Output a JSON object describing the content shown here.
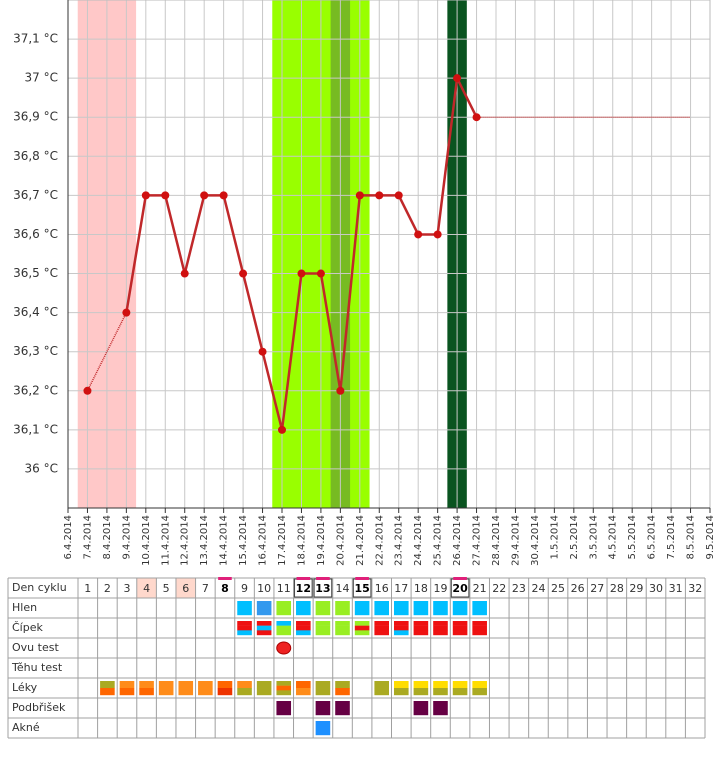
{
  "chart_data": {
    "type": "line",
    "x": [
      "6.4.2014",
      "7.4.2014",
      "8.4.2014",
      "9.4.2014",
      "10.4.2014",
      "11.4.2014",
      "12.4.2014",
      "13.4.2014",
      "14.4.2014",
      "15.4.2014",
      "16.4.2014",
      "17.4.2014",
      "18.4.2014",
      "19.4.2014",
      "20.4.2014",
      "21.4.2014",
      "22.4.2014",
      "23.4.2014",
      "24.4.2014",
      "25.4.2014",
      "26.4.2014",
      "27.4.2014",
      "28.4.2014",
      "29.4.2014",
      "30.4.2014",
      "1.5.2014",
      "2.5.2014",
      "3.5.2014",
      "4.5.2014",
      "5.5.2014",
      "6.5.2014",
      "7.5.2014",
      "8.5.2014",
      "9.5.2014"
    ],
    "values": [
      null,
      36.2,
      null,
      36.4,
      36.7,
      36.7,
      36.5,
      36.7,
      36.7,
      36.5,
      36.3,
      36.1,
      36.5,
      36.5,
      36.2,
      36.7,
      36.7,
      36.7,
      36.6,
      36.6,
      37.0,
      36.9,
      null,
      null,
      null,
      null,
      null,
      null,
      null,
      null,
      null,
      null,
      null,
      null
    ],
    "color": "#c0282a",
    "point_color": "#d01010",
    "ylim": [
      35.9,
      37.2
    ],
    "yticks": [
      {
        "value": 36.0,
        "label": "36 °C"
      },
      {
        "value": 36.1,
        "label": "36,1 °C"
      },
      {
        "value": 36.2,
        "label": "36,2 °C"
      },
      {
        "value": 36.3,
        "label": "36,3 °C"
      },
      {
        "value": 36.4,
        "label": "36,4 °C"
      },
      {
        "value": 36.5,
        "label": "36,5 °C"
      },
      {
        "value": 36.6,
        "label": "36,6 °C"
      },
      {
        "value": 36.7,
        "label": "36,7 °C"
      },
      {
        "value": 36.8,
        "label": "36,8 °C"
      },
      {
        "value": 36.9,
        "label": "36,9 °C"
      },
      {
        "value": 37.0,
        "label": "37 °C"
      },
      {
        "value": 37.1,
        "label": "37,1 °C"
      }
    ],
    "grid": true,
    "reference_line": {
      "value": 36.9,
      "color": "#c0282a"
    },
    "highlights": [
      {
        "start": "7.4.2014",
        "end": "9.4.2014",
        "color": "#ffc8c8"
      },
      {
        "start": "17.4.2014",
        "end": "21.4.2014",
        "color": "#99ff00"
      },
      {
        "start": "20.4.2014",
        "end": "20.4.2014",
        "color": "#77bb22"
      },
      {
        "start": "26.4.2014",
        "end": "26.4.2014",
        "color": "#0a5420"
      }
    ]
  },
  "cycle_table": {
    "header_label": "Den cyklu",
    "days": [
      1,
      2,
      3,
      4,
      5,
      6,
      7,
      8,
      9,
      10,
      11,
      12,
      13,
      14,
      15,
      16,
      17,
      18,
      19,
      20,
      21,
      22,
      23,
      24,
      25,
      26,
      27,
      28,
      29,
      30,
      31,
      32
    ],
    "pink_days": [
      4,
      6
    ],
    "marked_days": [
      8,
      12,
      13,
      15,
      20
    ],
    "boxed_days": [
      12,
      13,
      15,
      20
    ],
    "rows": [
      {
        "label": "Hlen",
        "cells": [
          {
            "day": 9,
            "colors": [
              "#00bfff"
            ]
          },
          {
            "day": 10,
            "colors": [
              "#3399ee"
            ]
          },
          {
            "day": 11,
            "colors": [
              "#99ee22"
            ]
          },
          {
            "day": 12,
            "colors": [
              "#00bfff"
            ]
          },
          {
            "day": 13,
            "colors": [
              "#99ee22"
            ]
          },
          {
            "day": 14,
            "colors": [
              "#99ee22"
            ]
          },
          {
            "day": 15,
            "colors": [
              "#00bfff"
            ]
          },
          {
            "day": 16,
            "colors": [
              "#00bfff"
            ]
          },
          {
            "day": 17,
            "colors": [
              "#00bfff"
            ]
          },
          {
            "day": 18,
            "colors": [
              "#00bfff"
            ]
          },
          {
            "day": 19,
            "colors": [
              "#00bfff"
            ]
          },
          {
            "day": 20,
            "colors": [
              "#00bfff"
            ]
          },
          {
            "day": 21,
            "colors": [
              "#00bfff"
            ]
          }
        ]
      },
      {
        "label": "Čípek",
        "cells": [
          {
            "day": 9,
            "colors": [
              "#ee1111",
              "#ee1111",
              "#00bfff"
            ]
          },
          {
            "day": 10,
            "colors": [
              "#ee1111",
              "#00bfff",
              "#ee1111"
            ]
          },
          {
            "day": 11,
            "colors": [
              "#00bfff",
              "#99ee22",
              "#99ee22"
            ]
          },
          {
            "day": 12,
            "colors": [
              "#ee1111",
              "#ee1111",
              "#00bfff"
            ]
          },
          {
            "day": 13,
            "colors": [
              "#99ee22",
              "#99ee22",
              "#99ee22"
            ]
          },
          {
            "day": 14,
            "colors": [
              "#99ee22",
              "#99ee22",
              "#99ee22"
            ]
          },
          {
            "day": 15,
            "colors": [
              "#99ee22",
              "#ee1111",
              "#99ee22"
            ]
          },
          {
            "day": 16,
            "colors": [
              "#ee1111",
              "#ee1111",
              "#ee1111"
            ]
          },
          {
            "day": 17,
            "colors": [
              "#ee1111",
              "#ee1111",
              "#00bfff"
            ]
          },
          {
            "day": 18,
            "colors": [
              "#ee1111",
              "#ee1111",
              "#ee1111"
            ]
          },
          {
            "day": 19,
            "colors": [
              "#ee1111",
              "#ee1111",
              "#ee1111"
            ]
          },
          {
            "day": 20,
            "colors": [
              "#ee1111",
              "#ee1111",
              "#ee1111"
            ]
          },
          {
            "day": 21,
            "colors": [
              "#ee1111",
              "#ee1111",
              "#ee1111"
            ]
          }
        ]
      },
      {
        "label": "Ovu test",
        "cells": [
          {
            "day": 11,
            "colors": [
              "#ee2222"
            ],
            "shape": "blob"
          }
        ]
      },
      {
        "label": "Těhu test",
        "cells": []
      },
      {
        "label": "Léky",
        "cells": [
          {
            "day": 2,
            "colors": [
              "#aaaa22",
              "#ff6600"
            ]
          },
          {
            "day": 3,
            "colors": [
              "#ff8c1a",
              "#ff6600"
            ]
          },
          {
            "day": 4,
            "colors": [
              "#ff8c1a",
              "#ff6600"
            ]
          },
          {
            "day": 5,
            "colors": [
              "#ff8c1a",
              "#ff8c1a"
            ]
          },
          {
            "day": 6,
            "colors": [
              "#ff8c1a",
              "#ff8c1a"
            ]
          },
          {
            "day": 7,
            "colors": [
              "#ff8c1a",
              "#ff8c1a"
            ]
          },
          {
            "day": 8,
            "colors": [
              "#ff6600",
              "#ee3300"
            ]
          },
          {
            "day": 9,
            "colors": [
              "#ff8c1a",
              "#aaaa22"
            ]
          },
          {
            "day": 10,
            "colors": [
              "#aaaa22",
              "#aaaa22"
            ]
          },
          {
            "day": 11,
            "colors": [
              "#aaaa22",
              "#ff6600",
              "#aaaa22"
            ]
          },
          {
            "day": 12,
            "colors": [
              "#ff6600",
              "#ff8c1a"
            ]
          },
          {
            "day": 13,
            "colors": [
              "#aaaa22",
              "#aaaa22"
            ]
          },
          {
            "day": 14,
            "colors": [
              "#aaaa22",
              "#ff6600"
            ]
          },
          {
            "day": 16,
            "colors": [
              "#aaaa22",
              "#aaaa22"
            ]
          },
          {
            "day": 17,
            "colors": [
              "#ffdd00",
              "#aaaa22"
            ]
          },
          {
            "day": 18,
            "colors": [
              "#ffdd00",
              "#aaaa22"
            ]
          },
          {
            "day": 19,
            "colors": [
              "#ffdd00",
              "#aaaa22"
            ]
          },
          {
            "day": 20,
            "colors": [
              "#ffdd00",
              "#aaaa22"
            ]
          },
          {
            "day": 21,
            "colors": [
              "#ffdd00",
              "#aaaa22"
            ]
          }
        ]
      },
      {
        "label": "Podbřišek",
        "cells": [
          {
            "day": 11,
            "colors": [
              "#660044"
            ]
          },
          {
            "day": 13,
            "colors": [
              "#660044"
            ]
          },
          {
            "day": 14,
            "colors": [
              "#660044"
            ]
          },
          {
            "day": 18,
            "colors": [
              "#660044"
            ]
          },
          {
            "day": 19,
            "colors": [
              "#660044"
            ]
          }
        ]
      },
      {
        "label": "Akné",
        "cells": [
          {
            "day": 13,
            "colors": [
              "#1e90ff"
            ]
          }
        ]
      }
    ]
  }
}
